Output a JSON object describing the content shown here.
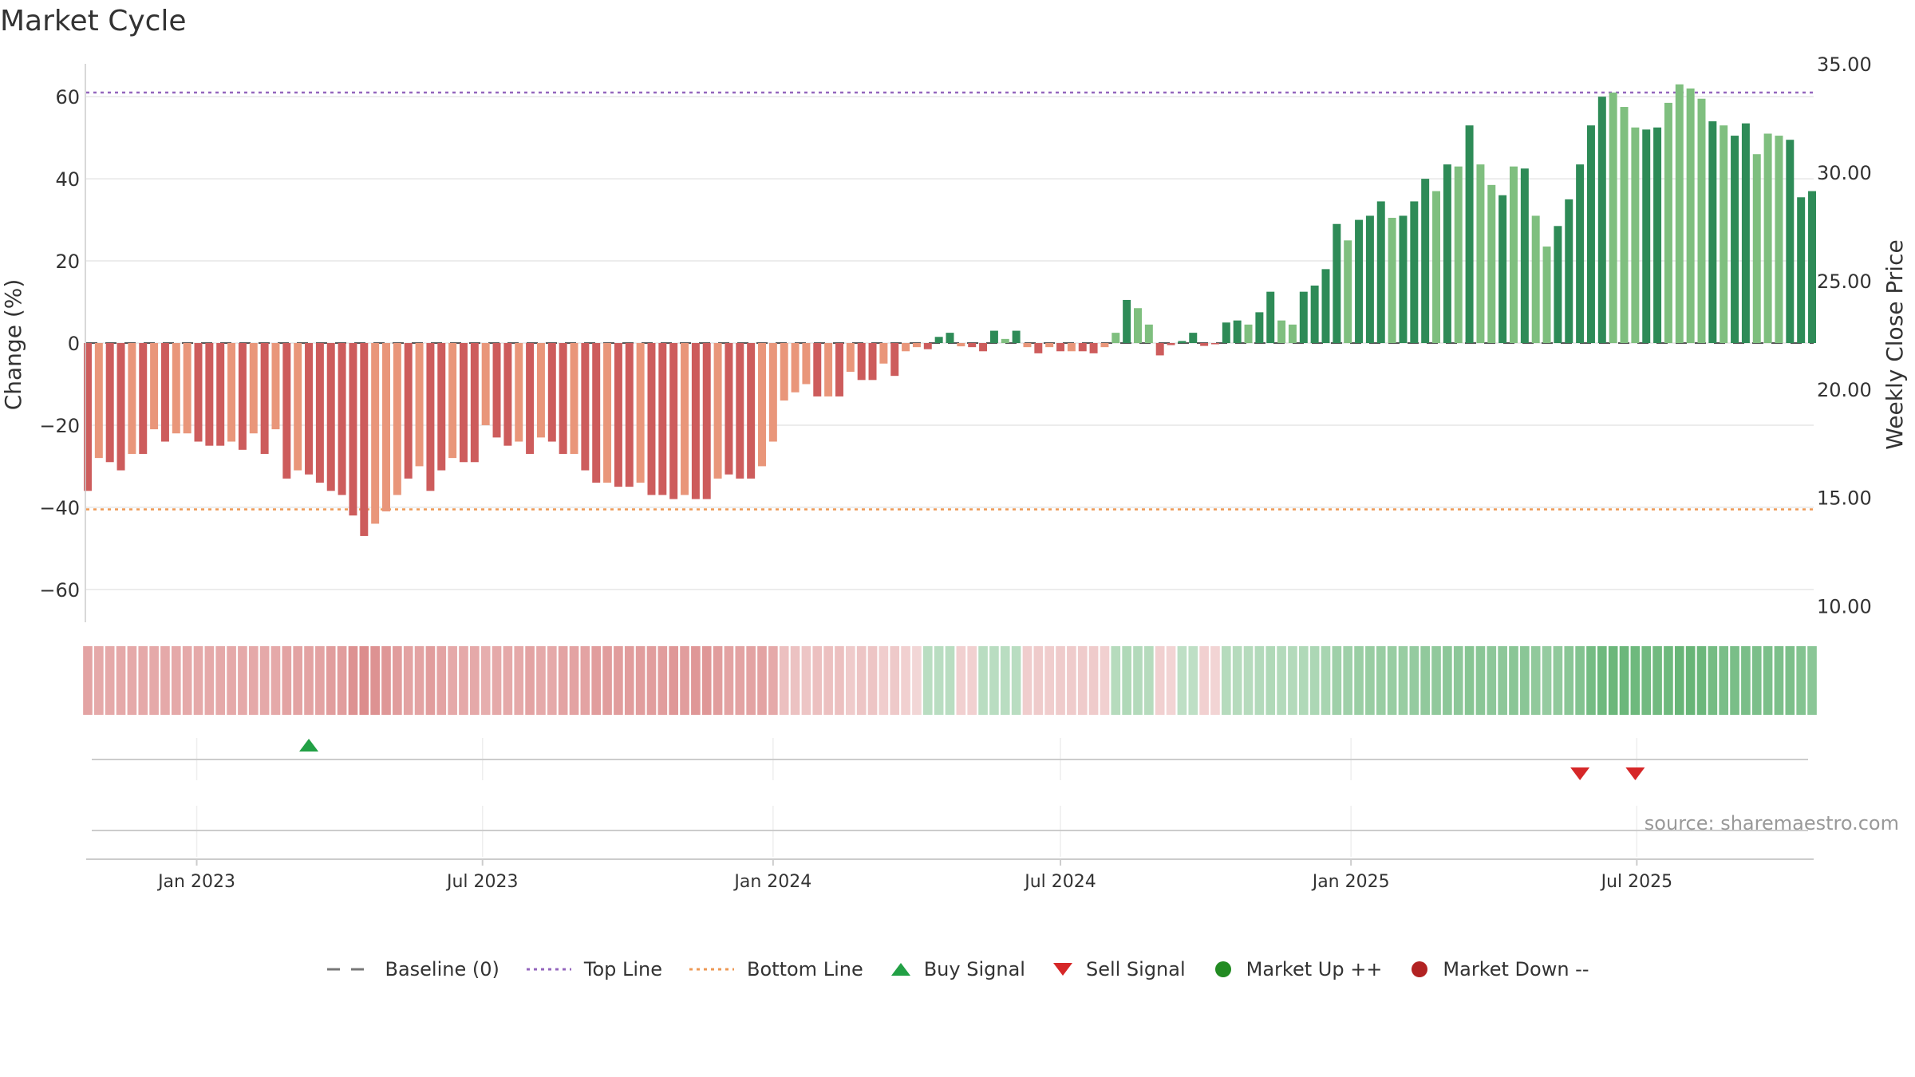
{
  "chart_data": {
    "type": "bar",
    "title": "Market Cycle",
    "ylabel_left": "Change (%)",
    "ylabel_right": "Weekly Close Price",
    "ylim_left": [
      -68,
      68
    ],
    "yticks_left": [
      60,
      40,
      20,
      0,
      -20,
      -40,
      -60
    ],
    "ylim_right": [
      9.25,
      35.0
    ],
    "yticks_right": [
      "35.00",
      "30.00",
      "25.00",
      "20.00",
      "15.00",
      "10.00"
    ],
    "top_line": 61,
    "bottom_line": -40.5,
    "x_start_date": "2022-10-24",
    "week_count": 157,
    "xticks": [
      {
        "date": "2023-01-01",
        "label": "Jan 2023"
      },
      {
        "date": "2023-07-01",
        "label": "Jul 2023"
      },
      {
        "date": "2024-01-01",
        "label": "Jan 2024"
      },
      {
        "date": "2024-07-01",
        "label": "Jul 2024"
      },
      {
        "date": "2025-01-01",
        "label": "Jan 2025"
      },
      {
        "date": "2025-07-01",
        "label": "Jul 2025"
      }
    ],
    "values": [
      -36,
      -28,
      -29,
      -31,
      -27,
      -27,
      -21,
      -24,
      -22,
      -22,
      -24,
      -25,
      -25,
      -24,
      -26,
      -22,
      -27,
      -21,
      -33,
      -31,
      -32,
      -34,
      -36,
      -37,
      -42,
      -47,
      -44,
      -41,
      -37,
      -33,
      -30,
      -36,
      -31,
      -28,
      -29,
      -29,
      -20,
      -23,
      -25,
      -24,
      -27,
      -23,
      -24,
      -27,
      -27,
      -31,
      -34,
      -34,
      -35,
      -35,
      -34,
      -37,
      -37,
      -38,
      -37,
      -38,
      -38,
      -33,
      -32,
      -33,
      -33,
      -30,
      -24,
      -14,
      -12,
      -10,
      -13,
      -13,
      -13,
      -7,
      -9,
      -9,
      -5,
      -8,
      -2,
      -1,
      -1.5,
      1.5,
      2.5,
      -0.8,
      -1,
      -2,
      3,
      1,
      3,
      -1,
      -2.5,
      -1,
      -2,
      -2,
      -2,
      -2.5,
      -1,
      2.5,
      10.5,
      8.5,
      4.5,
      -3,
      -0.5,
      0.5,
      2.5,
      -0.7,
      -0.3,
      5,
      5.5,
      4.5,
      7.5,
      12.5,
      5.5,
      4.5,
      12.5,
      14,
      18,
      29,
      25,
      30,
      31,
      34.5,
      30.5,
      31,
      34.5,
      40,
      37,
      43.5,
      43,
      53,
      43.5,
      38.5,
      36,
      43,
      42.5,
      31,
      23.5,
      28.5,
      35,
      43.5,
      53,
      60,
      61,
      57.5,
      52.5,
      52,
      52.5,
      58.5,
      63,
      62,
      59.5,
      54,
      53,
      50.5,
      53.5,
      46,
      51,
      50.5,
      49.5,
      35.5,
      37
    ],
    "bar_light_flags": [
      0,
      1,
      0,
      0,
      1,
      0,
      1,
      0,
      1,
      1,
      0,
      0,
      0,
      1,
      0,
      1,
      0,
      1,
      0,
      1,
      0,
      0,
      0,
      0,
      0,
      0,
      1,
      1,
      1,
      0,
      1,
      0,
      0,
      1,
      0,
      0,
      1,
      0,
      0,
      1,
      0,
      1,
      0,
      0,
      1,
      0,
      0,
      1,
      0,
      0,
      1,
      0,
      0,
      0,
      1,
      0,
      0,
      1,
      0,
      0,
      0,
      1,
      1,
      1,
      1,
      1,
      0,
      1,
      0,
      1,
      0,
      0,
      1,
      0,
      1,
      1,
      0,
      0,
      0,
      1,
      0,
      0,
      0,
      1,
      0,
      1,
      0,
      1,
      0,
      1,
      0,
      0,
      1,
      1,
      0,
      1,
      1,
      0,
      0,
      0,
      0,
      0,
      0,
      0,
      0,
      1,
      0,
      0,
      1,
      1,
      0,
      0,
      0,
      0,
      1,
      0,
      0,
      0,
      1,
      0,
      0,
      0,
      1,
      0,
      1,
      0,
      1,
      1,
      0,
      1,
      0,
      1,
      1,
      0,
      0,
      0,
      0,
      0,
      1,
      1,
      1,
      0,
      0,
      1,
      1,
      1,
      1,
      0,
      1,
      0,
      0,
      1,
      1,
      1
    ],
    "strength_band": [
      0.55,
      0.5,
      0.5,
      0.5,
      0.5,
      0.5,
      0.5,
      0.5,
      0.5,
      0.5,
      0.5,
      0.5,
      0.5,
      0.5,
      0.5,
      0.5,
      0.5,
      0.5,
      0.55,
      0.55,
      0.55,
      0.55,
      0.6,
      0.6,
      0.7,
      0.75,
      0.7,
      0.65,
      0.6,
      0.55,
      0.55,
      0.6,
      0.55,
      0.5,
      0.5,
      0.5,
      0.45,
      0.5,
      0.5,
      0.5,
      0.55,
      0.5,
      0.5,
      0.55,
      0.55,
      0.55,
      0.6,
      0.6,
      0.6,
      0.6,
      0.6,
      0.6,
      0.6,
      0.65,
      0.6,
      0.65,
      0.65,
      0.6,
      0.55,
      0.55,
      0.55,
      0.55,
      0.5,
      0.3,
      0.28,
      0.25,
      0.3,
      0.3,
      0.3,
      0.2,
      0.25,
      0.25,
      0.18,
      0.22,
      0.15,
      0.1,
      -0.25,
      -0.25,
      -0.25,
      0.15,
      0.15,
      -0.25,
      -0.25,
      -0.25,
      -0.25,
      0.18,
      0.2,
      0.18,
      0.2,
      0.2,
      0.2,
      0.2,
      0.15,
      -0.28,
      -0.32,
      -0.3,
      -0.28,
      0.15,
      0.12,
      -0.22,
      -0.22,
      0.15,
      0.12,
      -0.28,
      -0.28,
      -0.28,
      -0.3,
      -0.32,
      -0.3,
      -0.3,
      -0.32,
      -0.35,
      -0.38,
      -0.45,
      -0.45,
      -0.48,
      -0.5,
      -0.5,
      -0.5,
      -0.5,
      -0.52,
      -0.55,
      -0.55,
      -0.58,
      -0.58,
      -0.62,
      -0.6,
      -0.58,
      -0.58,
      -0.6,
      -0.6,
      -0.55,
      -0.52,
      -0.55,
      -0.6,
      -0.65,
      -0.75,
      -0.8,
      -0.82,
      -0.82,
      -0.8,
      -0.78,
      -0.78,
      -0.8,
      -0.85,
      -0.85,
      -0.82,
      -0.75,
      -0.72,
      -0.72,
      -0.72,
      -0.7,
      -0.7,
      -0.7,
      -0.7,
      -0.65,
      -0.6
    ],
    "buy_signals": [
      {
        "date": "2023-03-13"
      }
    ],
    "sell_signals": [
      {
        "date": "2025-05-26"
      },
      {
        "date": "2025-06-30"
      }
    ],
    "source": "source: sharemaestro.com",
    "legend": [
      {
        "label": "Baseline (0)",
        "symbol": "dash",
        "color": "#777777"
      },
      {
        "label": "Top Line",
        "symbol": "dot-line",
        "color": "#9467bd"
      },
      {
        "label": "Bottom Line",
        "symbol": "dot-line",
        "color": "#ee9955"
      },
      {
        "label": "Buy Signal",
        "symbol": "triangle-up",
        "color": "#22a045"
      },
      {
        "label": "Sell Signal",
        "symbol": "triangle-down",
        "color": "#d62728"
      },
      {
        "label": "Market Up ++",
        "symbol": "circle",
        "color": "#228b22"
      },
      {
        "label": "Market Down --",
        "symbol": "circle",
        "color": "#b22222"
      }
    ],
    "colors": {
      "pos_dark": "#2e8b57",
      "pos_light": "#7fbf7f",
      "neg_dark": "#cd5c5c",
      "neg_light": "#e9967a",
      "grid": "#e6e6e6",
      "axis": "#cccccc",
      "text": "#333333"
    }
  }
}
